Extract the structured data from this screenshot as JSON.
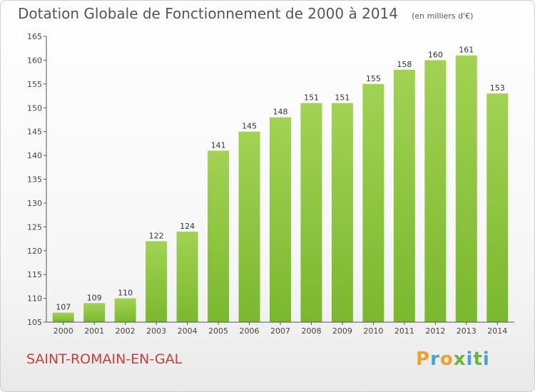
{
  "header": {
    "title": "Dotation Globale de Fonctionnement de 2000 à 2014",
    "subtitle": "(en milliers d'€)"
  },
  "footer": {
    "commune": "SAINT-ROMAIN-EN-GAL",
    "logo": {
      "letters": [
        "P",
        "r",
        "o",
        "x",
        "i",
        "t",
        "i"
      ],
      "colors": [
        "#f0a030",
        "#4aa0d8",
        "#f0a030",
        "#6cb33f",
        "#4aa0d8",
        "#6cb33f",
        "#4aa0d8"
      ]
    }
  },
  "chart_data": {
    "type": "bar",
    "title": "Dotation Globale de Fonctionnement de 2000 à 2014",
    "subtitle": "(en milliers d'€)",
    "categories": [
      "2000",
      "2001",
      "2002",
      "2003",
      "2004",
      "2005",
      "2006",
      "2007",
      "2008",
      "2009",
      "2010",
      "2011",
      "2012",
      "2013",
      "2014"
    ],
    "values": [
      107,
      109,
      110,
      122,
      124,
      141,
      145,
      148,
      151,
      151,
      155,
      158,
      160,
      161,
      153
    ],
    "ylim": [
      105,
      165
    ],
    "yticks": [
      105,
      110,
      115,
      120,
      125,
      130,
      135,
      140,
      145,
      150,
      155,
      160,
      165
    ],
    "grid": false,
    "bar_color": "#7ab82e",
    "bar_color_light": "#a2d253",
    "xlabel": "",
    "ylabel": ""
  }
}
